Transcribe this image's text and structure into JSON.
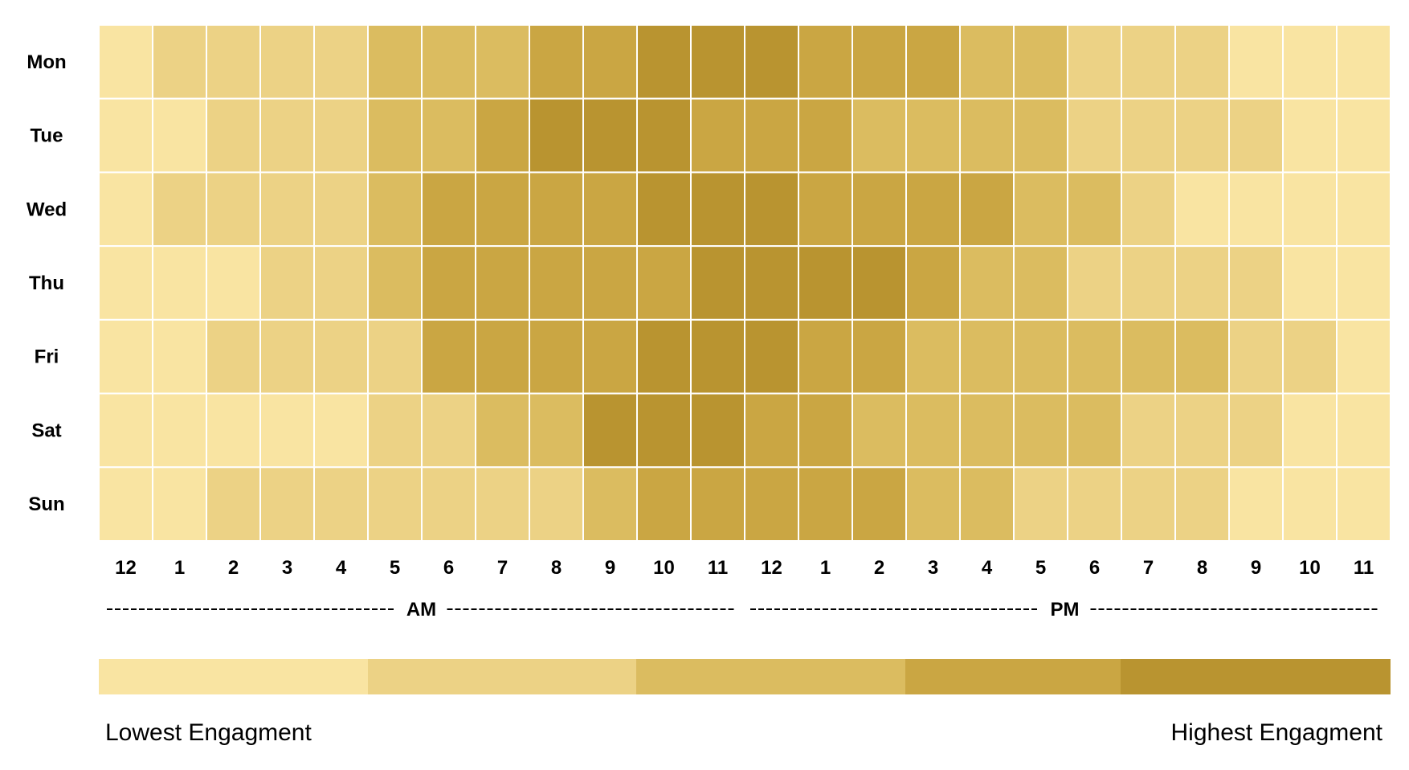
{
  "chart_data": {
    "type": "heatmap",
    "days": [
      "Mon",
      "Tue",
      "Wed",
      "Thu",
      "Fri",
      "Sat",
      "Sun"
    ],
    "hours": [
      "12",
      "1",
      "2",
      "3",
      "4",
      "5",
      "6",
      "7",
      "8",
      "9",
      "10",
      "11",
      "12",
      "1",
      "2",
      "3",
      "4",
      "5",
      "6",
      "7",
      "8",
      "9",
      "10",
      "11"
    ],
    "periods": [
      "AM",
      "PM"
    ],
    "level_colors": [
      "#F9E4A2",
      "#ECD285",
      "#DBBC60",
      "#CAA643",
      "#B99430"
    ],
    "values": [
      [
        1,
        2,
        2,
        2,
        2,
        3,
        3,
        3,
        4,
        4,
        5,
        5,
        5,
        4,
        4,
        4,
        3,
        3,
        2,
        2,
        2,
        1,
        1,
        1
      ],
      [
        1,
        1,
        2,
        2,
        2,
        3,
        3,
        4,
        5,
        5,
        5,
        4,
        4,
        4,
        3,
        3,
        3,
        3,
        2,
        2,
        2,
        2,
        1,
        1
      ],
      [
        1,
        2,
        2,
        2,
        2,
        3,
        4,
        4,
        4,
        4,
        5,
        5,
        5,
        4,
        4,
        4,
        4,
        3,
        3,
        2,
        1,
        1,
        1,
        1
      ],
      [
        1,
        1,
        1,
        2,
        2,
        3,
        4,
        4,
        4,
        4,
        4,
        5,
        5,
        5,
        5,
        4,
        3,
        3,
        2,
        2,
        2,
        2,
        1,
        1
      ],
      [
        1,
        1,
        2,
        2,
        2,
        2,
        4,
        4,
        4,
        4,
        5,
        5,
        5,
        4,
        4,
        3,
        3,
        3,
        3,
        3,
        3,
        2,
        2,
        1
      ],
      [
        1,
        1,
        1,
        1,
        1,
        2,
        2,
        3,
        3,
        5,
        5,
        5,
        4,
        4,
        3,
        3,
        3,
        3,
        3,
        2,
        2,
        2,
        1,
        1
      ],
      [
        1,
        1,
        2,
        2,
        2,
        2,
        2,
        2,
        2,
        3,
        4,
        4,
        4,
        4,
        4,
        3,
        3,
        2,
        2,
        2,
        2,
        1,
        1,
        1
      ]
    ],
    "legend": {
      "low_label": "Lowest Engagment",
      "high_label": "Highest Engagment"
    }
  }
}
